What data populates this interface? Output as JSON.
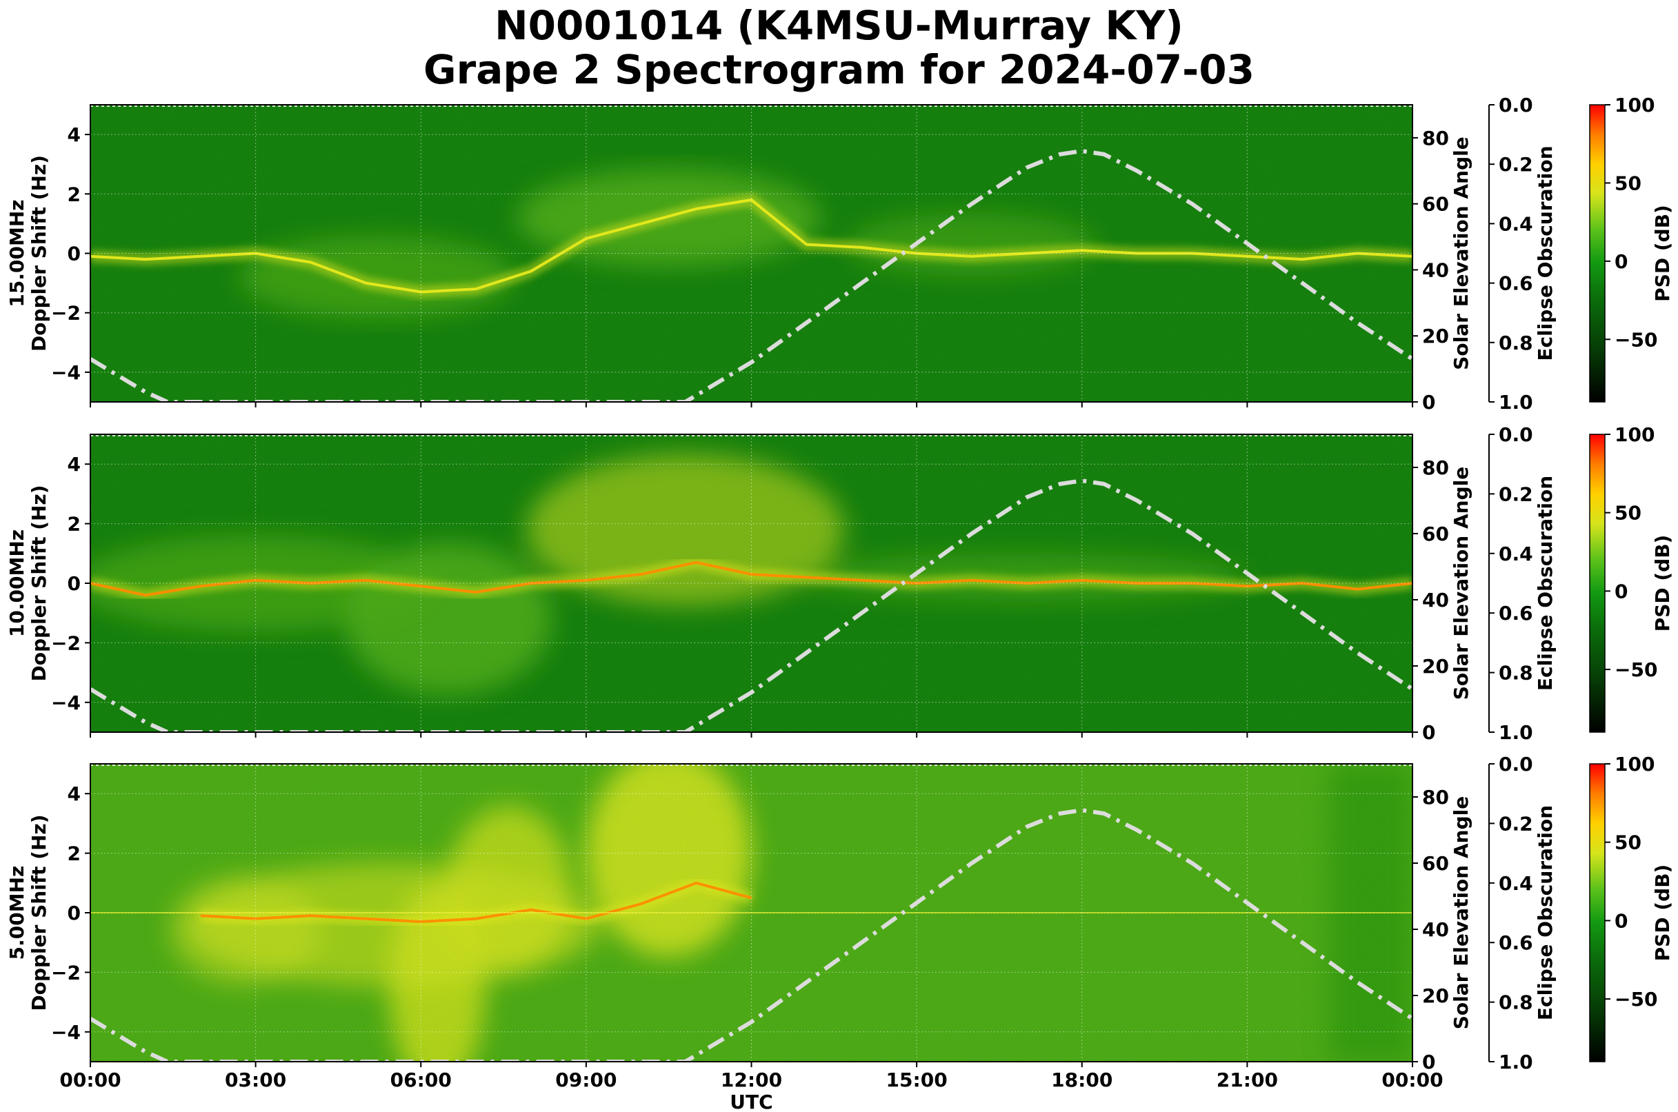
{
  "title_line1": "N0001014 (K4MSU-Murray KY)",
  "title_line2": "Grape 2 Spectrogram for 2024-07-03",
  "colors": {
    "background_green": "#0f7a0a",
    "mid_green": "#4faa14",
    "yellow": "#e8ea1e",
    "orange": "#ff8c00",
    "red": "#ff2000",
    "elevation_line": "#dcdcdc"
  },
  "chart_data": [
    {
      "type": "heatmap",
      "panel": "15.00MHz",
      "ylabel_line1": "15.00MHz",
      "ylabel_line2": "Doppler Shift (Hz)",
      "xlabel": "",
      "ylim": [
        -5,
        5
      ],
      "yticks": [
        "4",
        "2",
        "0",
        "−2",
        "−4"
      ],
      "ytick_values": [
        4,
        2,
        0,
        -2,
        -4
      ],
      "xticks": [
        "00:00",
        "03:00",
        "06:00",
        "09:00",
        "12:00",
        "15:00",
        "18:00",
        "21:00",
        "00:00"
      ],
      "xtick_hours": [
        0,
        3,
        6,
        9,
        12,
        15,
        18,
        21,
        24
      ],
      "right_axis1": {
        "label": "Solar Elevation Angle",
        "ylim": [
          0,
          90
        ],
        "ticks": [
          "0",
          "20",
          "40",
          "60",
          "80"
        ],
        "tick_values": [
          0,
          20,
          40,
          60,
          80
        ]
      },
      "right_axis2": {
        "label": "Eclipse Obscuration",
        "ylim": [
          0,
          1
        ],
        "inverted": true,
        "ticks": [
          "0.0",
          "0.2",
          "0.4",
          "0.6",
          "0.8",
          "1.0"
        ],
        "tick_values": [
          0,
          0.2,
          0.4,
          0.6,
          0.8,
          1.0
        ]
      },
      "colorbar": {
        "label": "PSD (dB)",
        "range": [
          -90,
          100
        ],
        "ticks": [
          "100",
          "50",
          "0",
          "−50"
        ],
        "tick_values": [
          100,
          50,
          0,
          -50
        ]
      },
      "grid": true,
      "doppler_trace": {
        "x_hours": [
          0,
          1,
          2,
          3,
          4,
          5,
          6,
          7,
          8,
          9,
          10,
          11,
          12,
          13,
          14,
          15,
          16,
          17,
          18,
          19,
          20,
          21,
          22,
          23,
          24
        ],
        "y_hz": [
          -0.1,
          -0.2,
          -0.1,
          0.0,
          -0.3,
          -1.0,
          -1.3,
          -1.2,
          -0.6,
          0.5,
          1.0,
          1.5,
          1.8,
          0.3,
          0.2,
          0.0,
          -0.1,
          0.0,
          0.1,
          0.0,
          0.0,
          -0.1,
          -0.2,
          0.0,
          -0.1
        ]
      },
      "solar_elevation": {
        "x_hours": [
          0,
          0.5,
          1.0,
          1.4,
          10.8,
          12,
          13,
          14,
          15,
          16,
          17,
          17.6,
          18,
          18.4,
          19,
          20,
          21,
          22,
          23,
          24
        ],
        "y_deg": [
          13,
          8,
          3,
          0,
          0,
          12,
          24,
          36,
          48,
          60,
          71,
          75,
          76,
          75,
          70,
          60,
          48,
          36,
          24,
          13
        ]
      }
    },
    {
      "type": "heatmap",
      "panel": "10.00MHz",
      "ylabel_line1": "10.00MHz",
      "ylabel_line2": "Doppler Shift (Hz)",
      "xlabel": "",
      "ylim": [
        -5,
        5
      ],
      "yticks": [
        "4",
        "2",
        "0",
        "−2",
        "−4"
      ],
      "ytick_values": [
        4,
        2,
        0,
        -2,
        -4
      ],
      "xticks": [
        "00:00",
        "03:00",
        "06:00",
        "09:00",
        "12:00",
        "15:00",
        "18:00",
        "21:00",
        "00:00"
      ],
      "xtick_hours": [
        0,
        3,
        6,
        9,
        12,
        15,
        18,
        21,
        24
      ],
      "right_axis1": {
        "label": "Solar Elevation Angle",
        "ylim": [
          0,
          90
        ],
        "ticks": [
          "0",
          "20",
          "40",
          "60",
          "80"
        ],
        "tick_values": [
          0,
          20,
          40,
          60,
          80
        ]
      },
      "right_axis2": {
        "label": "Eclipse Obscuration",
        "ylim": [
          0,
          1
        ],
        "inverted": true,
        "ticks": [
          "0.0",
          "0.2",
          "0.4",
          "0.6",
          "0.8",
          "1.0"
        ],
        "tick_values": [
          0,
          0.2,
          0.4,
          0.6,
          0.8,
          1.0
        ]
      },
      "colorbar": {
        "label": "PSD (dB)",
        "range": [
          -90,
          100
        ],
        "ticks": [
          "100",
          "50",
          "0",
          "−50"
        ],
        "tick_values": [
          100,
          50,
          0,
          -50
        ]
      },
      "grid": true,
      "doppler_trace": {
        "x_hours": [
          0,
          1,
          2,
          3,
          4,
          5,
          6,
          7,
          8,
          9,
          10,
          11,
          12,
          13,
          14,
          15,
          16,
          17,
          18,
          19,
          20,
          21,
          22,
          23,
          24
        ],
        "y_hz": [
          0.0,
          -0.4,
          -0.1,
          0.1,
          0.0,
          0.1,
          -0.1,
          -0.3,
          0.0,
          0.1,
          0.3,
          0.7,
          0.3,
          0.2,
          0.1,
          0.0,
          0.1,
          0.0,
          0.1,
          0.0,
          0.0,
          -0.1,
          0.0,
          -0.2,
          0.0
        ]
      },
      "solar_elevation": {
        "x_hours": [
          0,
          0.5,
          1.0,
          1.4,
          10.8,
          12,
          13,
          14,
          15,
          16,
          17,
          17.6,
          18,
          18.4,
          19,
          20,
          21,
          22,
          23,
          24
        ],
        "y_deg": [
          13,
          8,
          3,
          0,
          0,
          12,
          24,
          36,
          48,
          60,
          71,
          75,
          76,
          75,
          70,
          60,
          48,
          36,
          24,
          13
        ]
      }
    },
    {
      "type": "heatmap",
      "panel": "5.00MHz",
      "ylabel_line1": "5.00MHz",
      "ylabel_line2": "Doppler Shift (Hz)",
      "xlabel": "UTC",
      "ylim": [
        -5,
        5
      ],
      "yticks": [
        "4",
        "2",
        "0",
        "−2",
        "−4"
      ],
      "ytick_values": [
        4,
        2,
        0,
        -2,
        -4
      ],
      "xticks": [
        "00:00",
        "03:00",
        "06:00",
        "09:00",
        "12:00",
        "15:00",
        "18:00",
        "21:00",
        "00:00"
      ],
      "xtick_hours": [
        0,
        3,
        6,
        9,
        12,
        15,
        18,
        21,
        24
      ],
      "right_axis1": {
        "label": "Solar Elevation Angle",
        "ylim": [
          0,
          90
        ],
        "ticks": [
          "0",
          "20",
          "40",
          "60",
          "80"
        ],
        "tick_values": [
          0,
          20,
          40,
          60,
          80
        ]
      },
      "right_axis2": {
        "label": "Eclipse Obscuration",
        "ylim": [
          0,
          1
        ],
        "inverted": true,
        "ticks": [
          "0.0",
          "0.2",
          "0.4",
          "0.6",
          "0.8",
          "1.0"
        ],
        "tick_values": [
          0,
          0.2,
          0.4,
          0.6,
          0.8,
          1.0
        ]
      },
      "colorbar": {
        "label": "PSD (dB)",
        "range": [
          -90,
          100
        ],
        "ticks": [
          "100",
          "50",
          "0",
          "−50"
        ],
        "tick_values": [
          100,
          50,
          0,
          -50
        ]
      },
      "grid": true,
      "doppler_trace": {
        "x_hours": [
          2,
          3,
          4,
          5,
          6,
          7,
          8,
          9,
          10,
          11,
          12
        ],
        "y_hz": [
          -0.1,
          -0.2,
          -0.1,
          -0.2,
          -0.3,
          -0.2,
          0.1,
          -0.2,
          0.3,
          1.0,
          0.5
        ]
      },
      "solar_elevation": {
        "x_hours": [
          0,
          0.5,
          1.0,
          1.4,
          10.8,
          12,
          13,
          14,
          15,
          16,
          17,
          17.6,
          18,
          18.4,
          19,
          20,
          21,
          22,
          23,
          24
        ],
        "y_deg": [
          13,
          8,
          3,
          0,
          0,
          12,
          24,
          36,
          48,
          60,
          71,
          75,
          76,
          75,
          70,
          60,
          48,
          36,
          24,
          13
        ]
      }
    }
  ]
}
